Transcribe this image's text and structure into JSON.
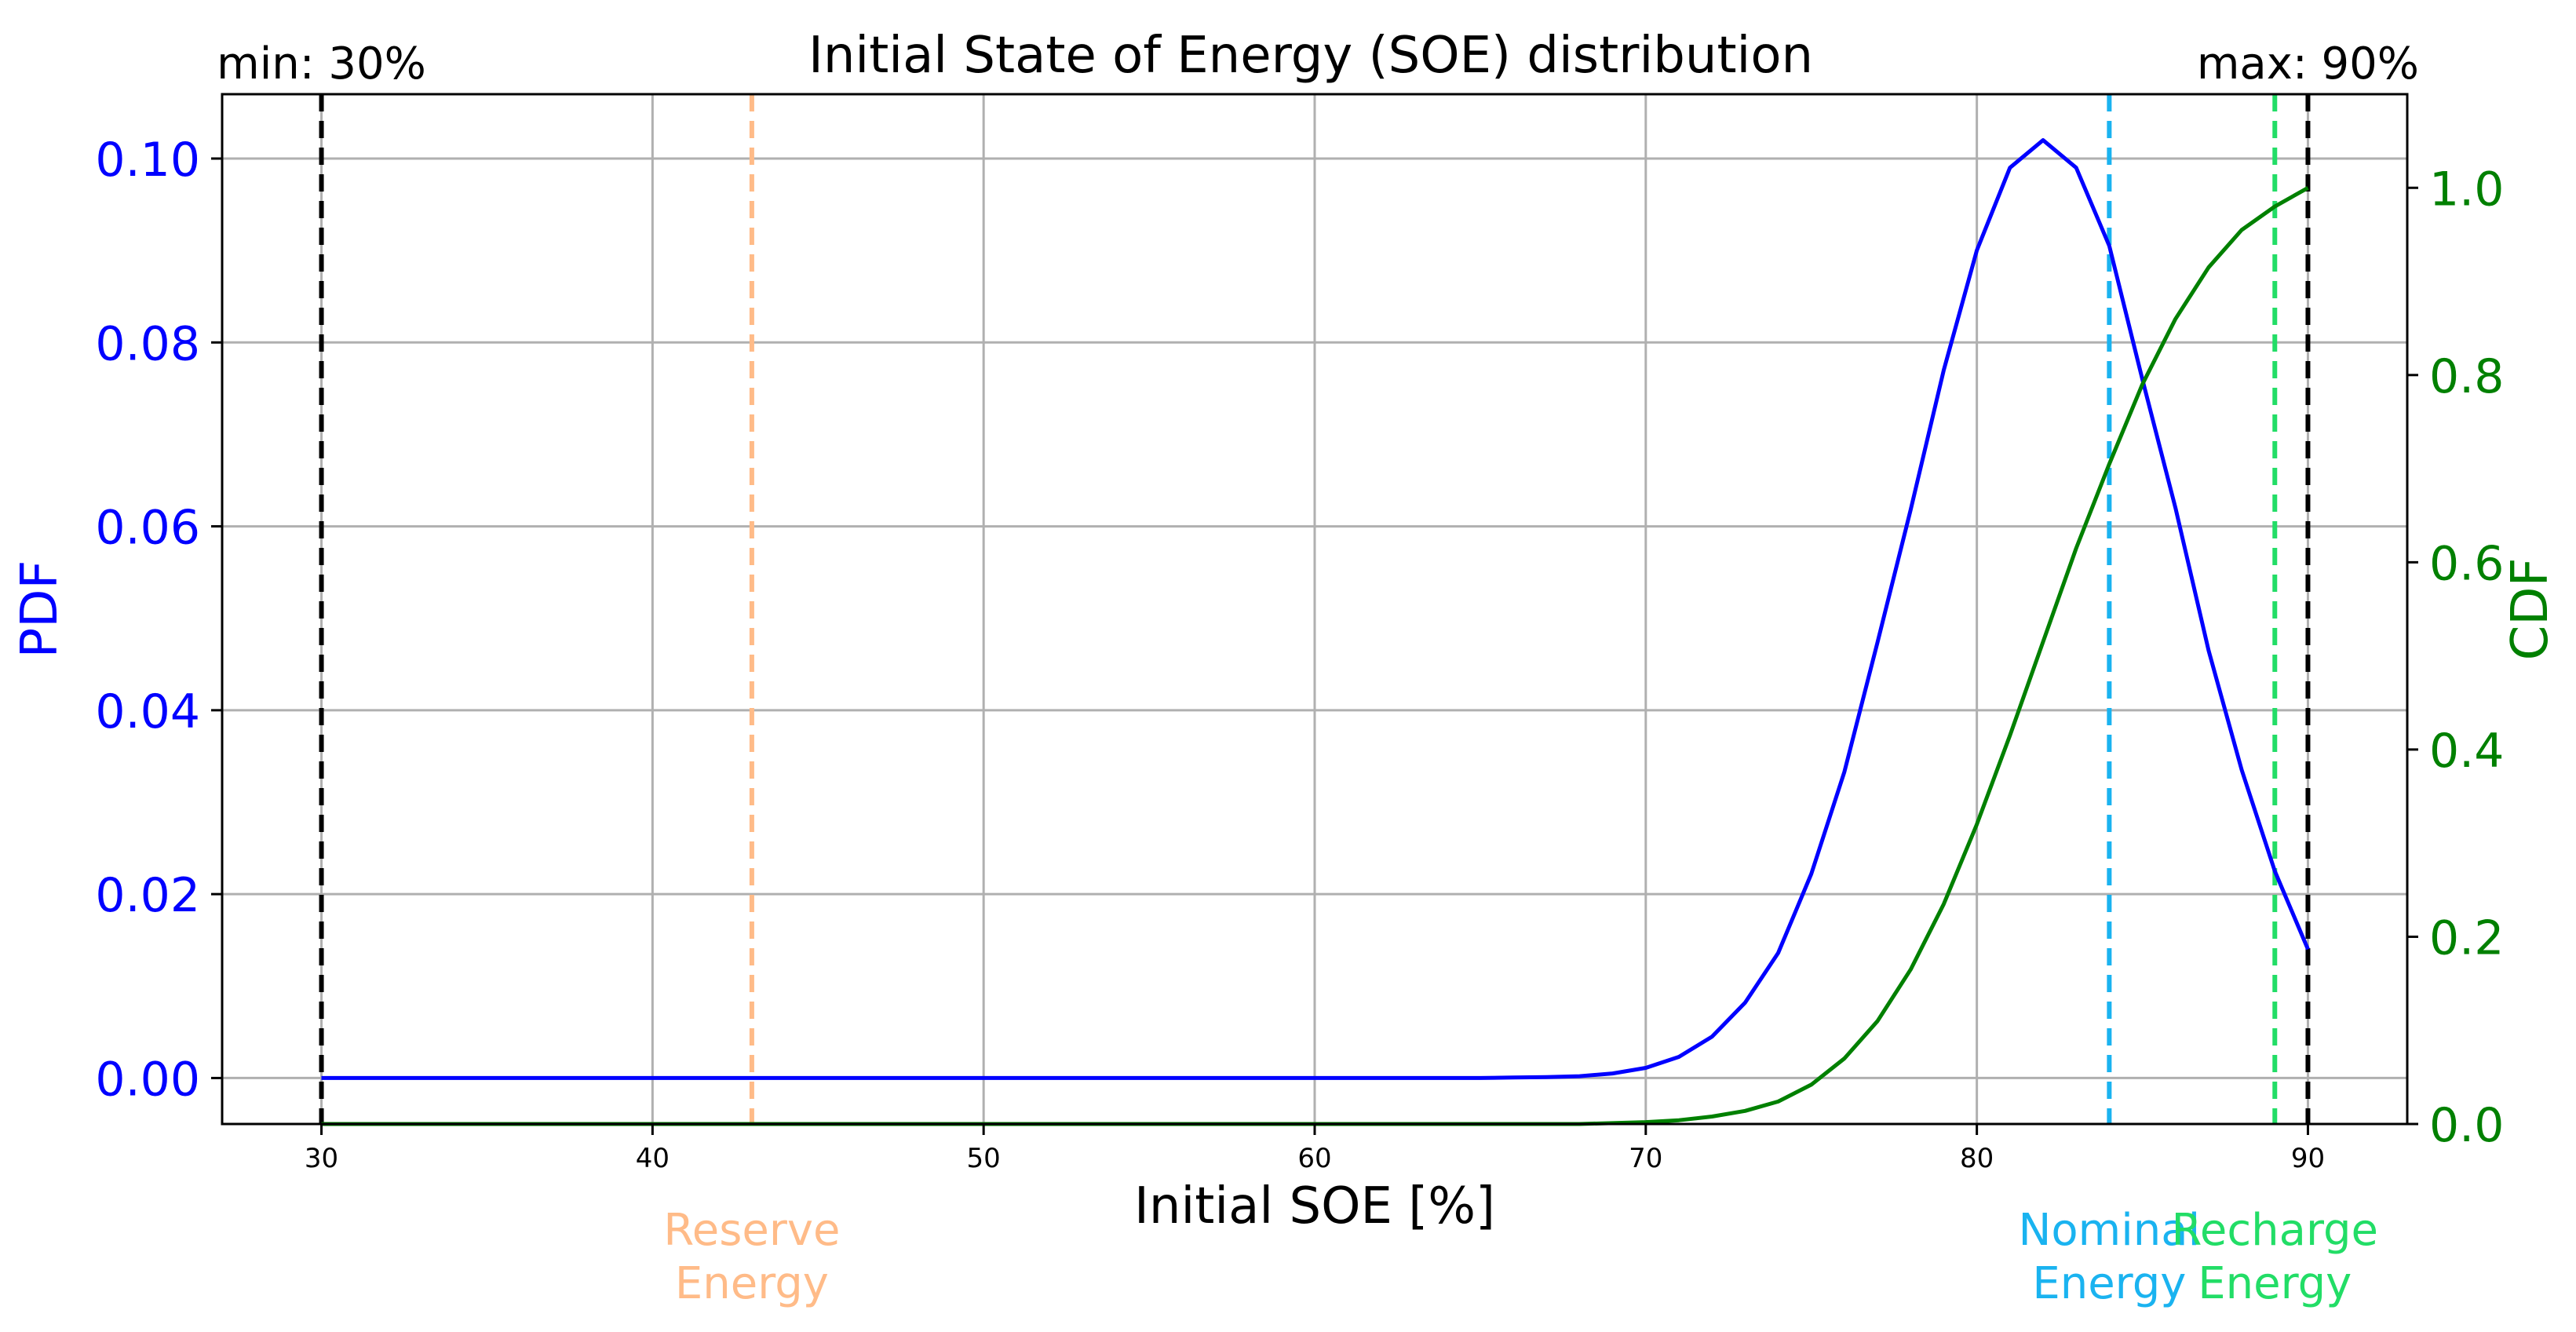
{
  "chart_data": {
    "type": "line",
    "title": "Initial State of Energy (SOE) distribution",
    "xlabel": "Initial SOE [%]",
    "ylabel": "PDF",
    "y2label": "CDF",
    "xlim": [
      27,
      93
    ],
    "ylim": [
      -0.005,
      0.107
    ],
    "y2lim": [
      0.0,
      1.1
    ],
    "xticks": [
      30,
      40,
      50,
      60,
      70,
      80,
      90
    ],
    "yticks": [
      0.0,
      0.02,
      0.04,
      0.06,
      0.08,
      0.1
    ],
    "ytick_labels": [
      "0.00",
      "0.02",
      "0.04",
      "0.06",
      "0.08",
      "0.10"
    ],
    "y2ticks": [
      0.0,
      0.2,
      0.4,
      0.6,
      0.8,
      1.0
    ],
    "y2tick_labels": [
      "0.0",
      "0.2",
      "0.4",
      "0.6",
      "0.8",
      "1.0"
    ],
    "grid": true,
    "colors": {
      "pdf": "#0000ff",
      "cdf": "#008000",
      "axis_left": "#0000ff",
      "axis_right": "#008000",
      "grid": "#b0b0b0"
    },
    "series": [
      {
        "name": "PDF",
        "axis": "left",
        "x": [
          30,
          40,
          50,
          60,
          65,
          66,
          67,
          68,
          69,
          70,
          71,
          72,
          73,
          74,
          75,
          76,
          77,
          78,
          79,
          80,
          81,
          82,
          83,
          84,
          85,
          86,
          87,
          88,
          89,
          90
        ],
        "values": [
          0.0,
          0.0,
          0.0,
          0.0,
          0.0,
          5e-05,
          0.0001,
          0.0002,
          0.0005,
          0.0011,
          0.0023,
          0.0045,
          0.0082,
          0.0136,
          0.0222,
          0.0333,
          0.0474,
          0.0618,
          0.077,
          0.09,
          0.099,
          0.102,
          0.099,
          0.0905,
          0.076,
          0.062,
          0.0465,
          0.0335,
          0.0225,
          0.014
        ]
      },
      {
        "name": "CDF",
        "axis": "right",
        "x": [
          30,
          50,
          68,
          70,
          71,
          72,
          73,
          74,
          75,
          76,
          77,
          78,
          79,
          80,
          81,
          82,
          83,
          84,
          85,
          86,
          87,
          88,
          89,
          90
        ],
        "values": [
          0.0,
          0.0,
          0.0,
          0.002,
          0.004,
          0.008,
          0.014,
          0.024,
          0.042,
          0.07,
          0.11,
          0.165,
          0.235,
          0.32,
          0.415,
          0.515,
          0.615,
          0.705,
          0.79,
          0.86,
          0.915,
          0.955,
          0.98,
          1.0
        ]
      }
    ],
    "vlines": [
      {
        "id": "min",
        "x": 30,
        "color": "#000000",
        "label": "min: 30%",
        "anchor": "top"
      },
      {
        "id": "reserve",
        "x": 43,
        "color": "#ffbb88",
        "label": "Reserve Energy",
        "lines": [
          "Reserve",
          "Energy"
        ],
        "anchor": "bottom"
      },
      {
        "id": "nominal",
        "x": 84,
        "color": "#1ab3f0",
        "label": "Nominal Energy",
        "lines": [
          "Nominal",
          "Energy"
        ],
        "anchor": "bottom"
      },
      {
        "id": "recharge",
        "x": 89,
        "color": "#22dd66",
        "label": "Recharge Energy",
        "lines": [
          "Recharge",
          "Energy"
        ],
        "anchor": "bottom"
      },
      {
        "id": "max",
        "x": 90,
        "color": "#000000",
        "label": "max: 90%",
        "anchor": "top"
      }
    ]
  }
}
